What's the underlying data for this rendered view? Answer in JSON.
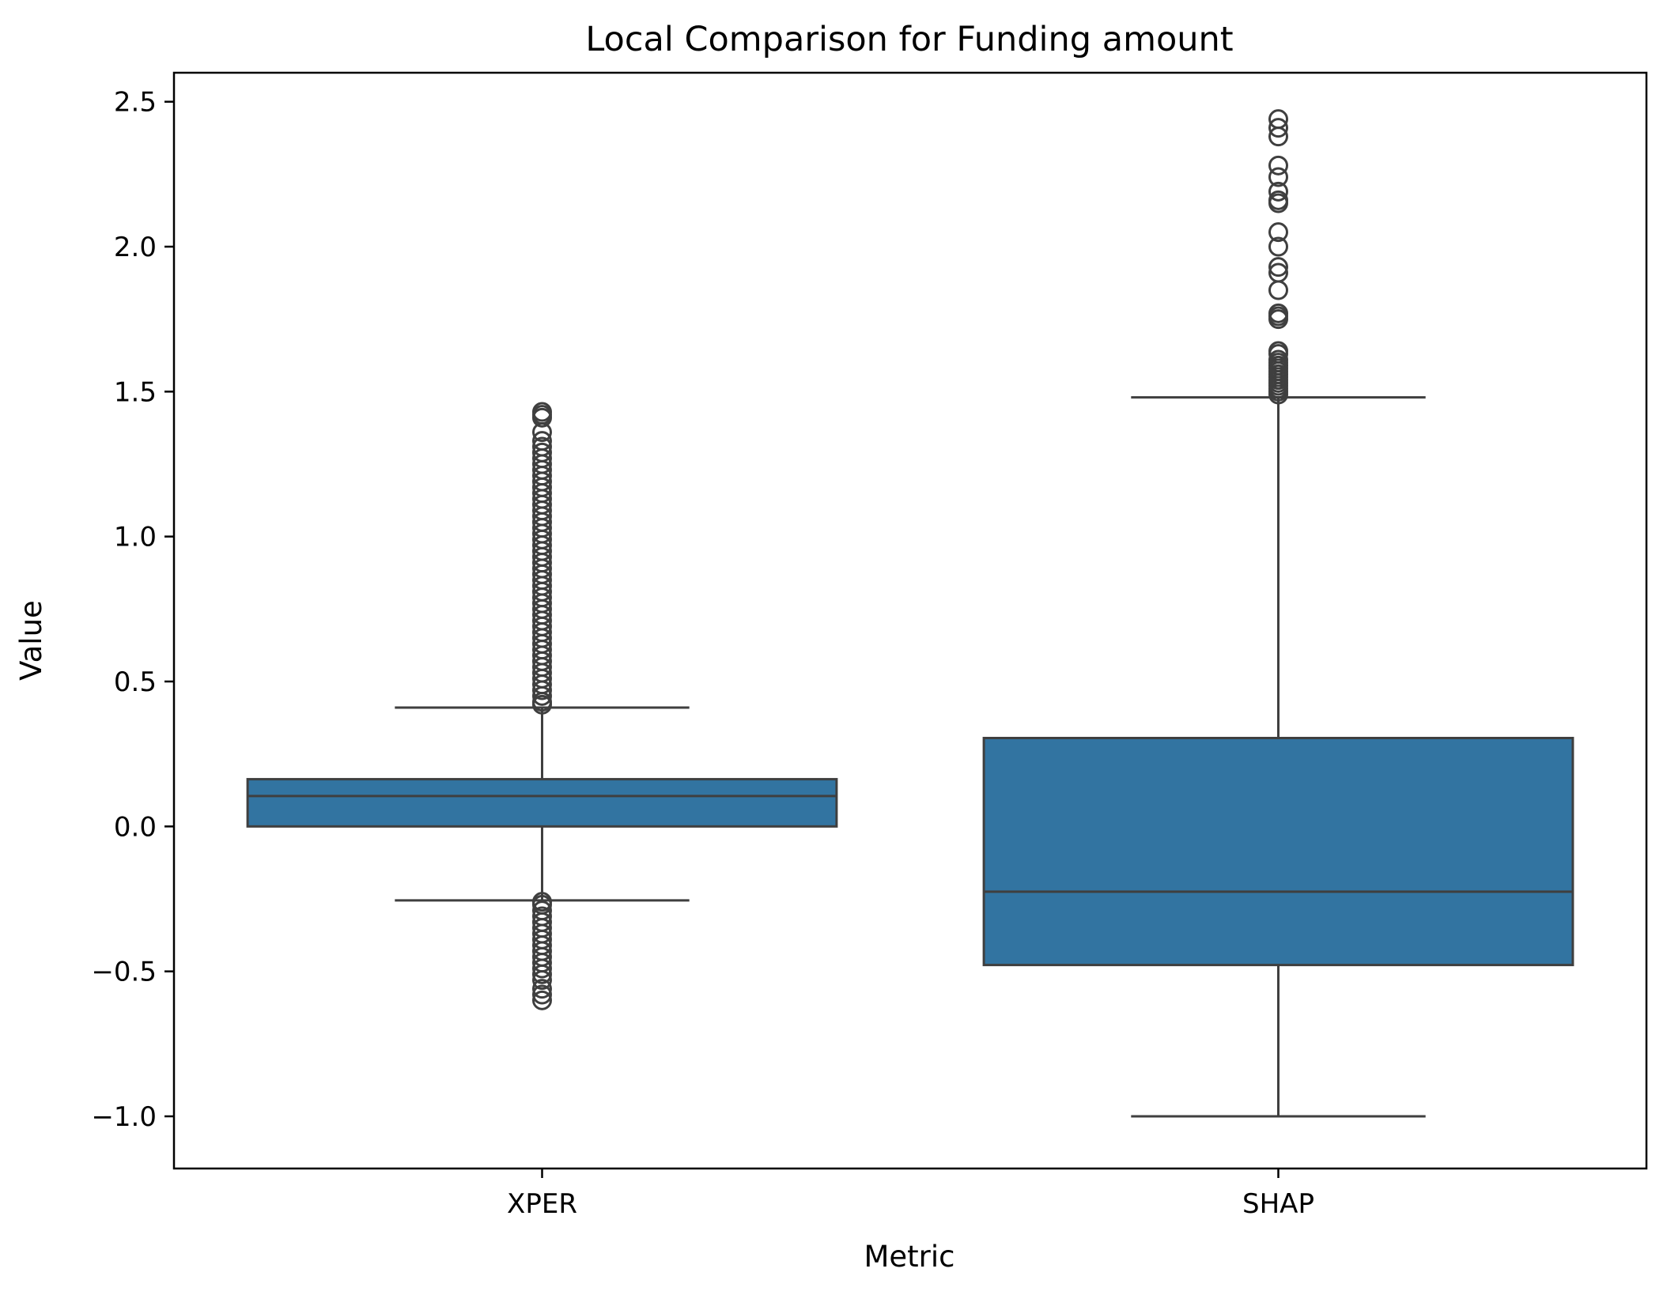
{
  "chart_data": {
    "type": "box",
    "title": "Local Comparison for Funding amount",
    "xlabel": "Metric",
    "ylabel": "Value",
    "ylim": [
      -1.18,
      2.6
    ],
    "yticks": [
      -1.0,
      -0.5,
      0.0,
      0.5,
      1.0,
      1.5,
      2.0,
      2.5
    ],
    "ytick_labels": [
      "−1.0",
      "−0.5",
      "0.0",
      "0.5",
      "1.0",
      "1.5",
      "2.0",
      "2.5"
    ],
    "categories": [
      "XPER",
      "SHAP"
    ],
    "grid": false,
    "colors": {
      "box_fill": "#3274a1",
      "line": "#3f3f3f",
      "axes": "#000000"
    },
    "boxes": [
      {
        "category": "XPER",
        "whisker_low": -0.255,
        "q1": 0.0,
        "median": 0.105,
        "q3": 0.163,
        "whisker_high": 0.41,
        "outliers": [
          1.43,
          1.42,
          1.41,
          1.36,
          1.33,
          1.31,
          1.29,
          1.27,
          1.25,
          1.23,
          1.21,
          1.19,
          1.17,
          1.15,
          1.13,
          1.11,
          1.09,
          1.07,
          1.05,
          1.03,
          1.01,
          0.99,
          0.97,
          0.95,
          0.93,
          0.91,
          0.89,
          0.87,
          0.85,
          0.83,
          0.81,
          0.79,
          0.77,
          0.75,
          0.73,
          0.71,
          0.69,
          0.67,
          0.65,
          0.63,
          0.61,
          0.59,
          0.57,
          0.55,
          0.53,
          0.51,
          0.49,
          0.47,
          0.45,
          0.43,
          0.42,
          -0.26,
          -0.27,
          -0.29,
          -0.31,
          -0.33,
          -0.35,
          -0.37,
          -0.39,
          -0.41,
          -0.43,
          -0.45,
          -0.47,
          -0.49,
          -0.51,
          -0.53,
          -0.56,
          -0.58,
          -0.6
        ]
      },
      {
        "category": "SHAP",
        "whisker_low": -1.0,
        "q1": -0.478,
        "median": -0.225,
        "q3": 0.305,
        "whisker_high": 1.48,
        "outliers": [
          2.44,
          2.41,
          2.38,
          2.28,
          2.24,
          2.19,
          2.16,
          2.15,
          2.05,
          2.0,
          1.93,
          1.91,
          1.85,
          1.77,
          1.76,
          1.75,
          1.64,
          1.63,
          1.61,
          1.6,
          1.59,
          1.58,
          1.57,
          1.56,
          1.55,
          1.54,
          1.53,
          1.52,
          1.51,
          1.5,
          1.49
        ]
      }
    ]
  }
}
